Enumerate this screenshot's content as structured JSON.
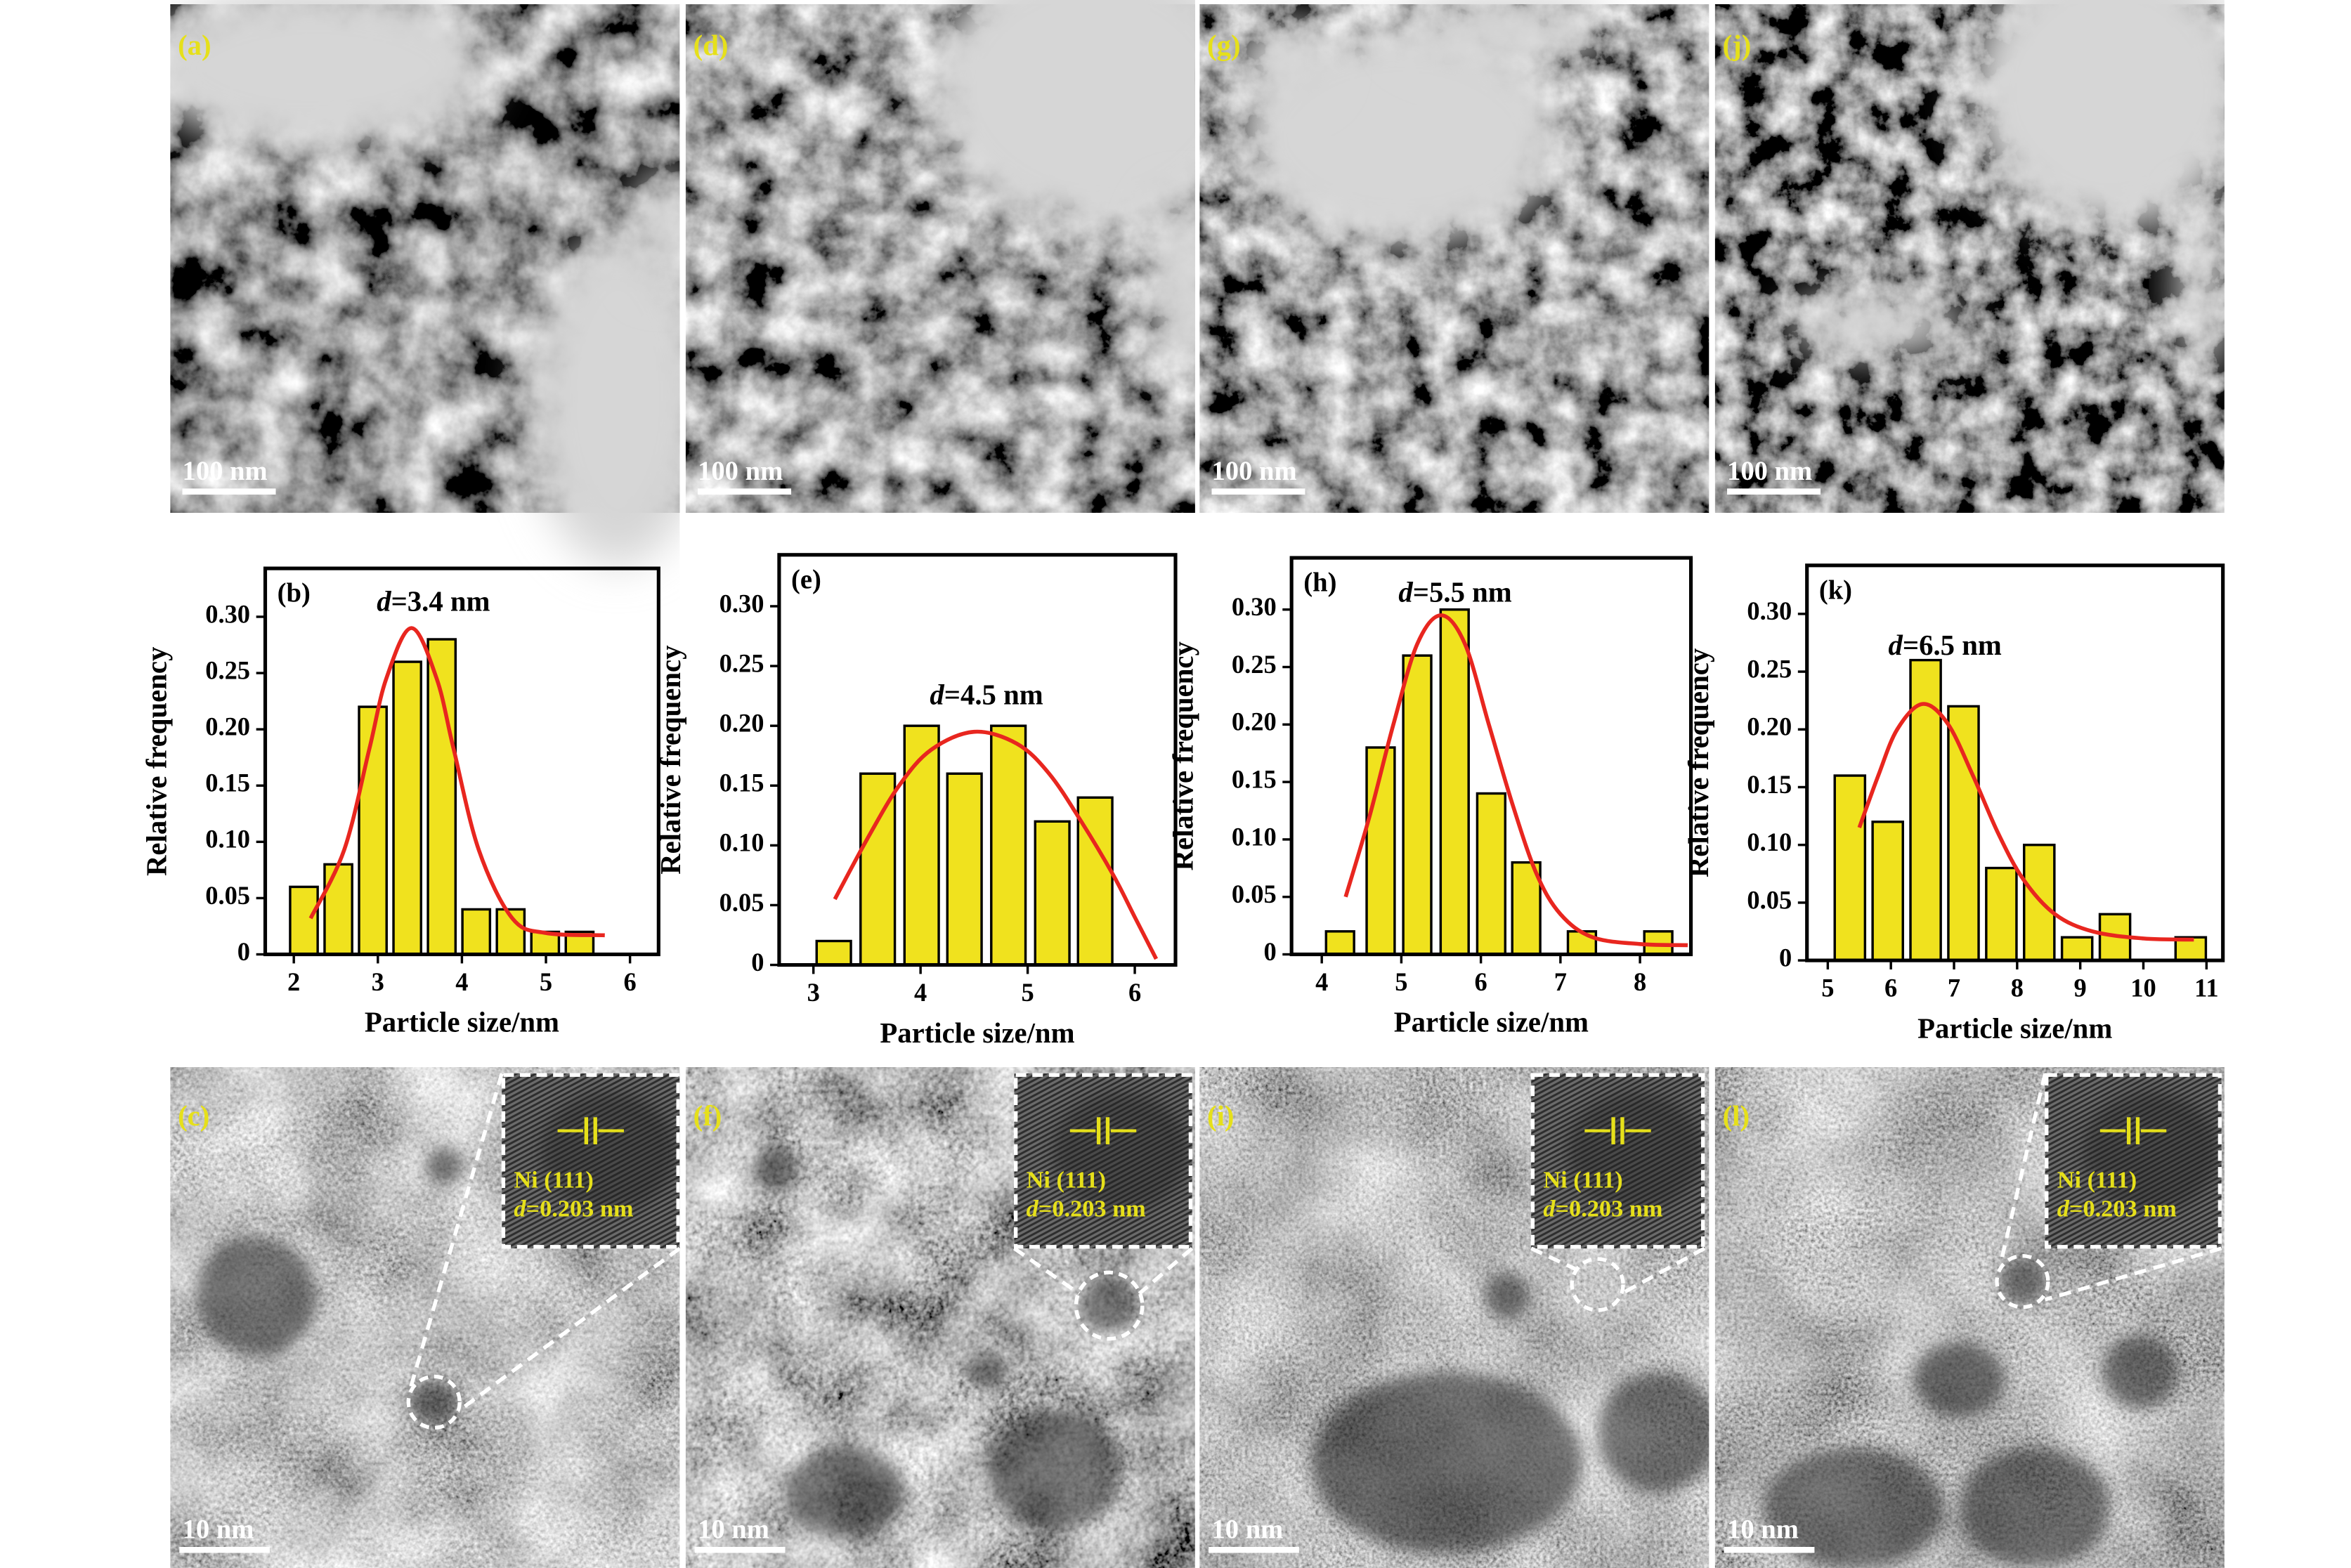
{
  "images_top": [
    {
      "panel": "(a)",
      "scale_bar": "100 nm"
    },
    {
      "panel": "(d)",
      "scale_bar": "100 nm"
    },
    {
      "panel": "(g)",
      "scale_bar": "100 nm"
    },
    {
      "panel": "(j)",
      "scale_bar": "100 nm"
    }
  ],
  "chart_data": [
    {
      "type": "bar",
      "panel": "(b)",
      "annotation": [
        "d",
        "=3.4 nm"
      ],
      "x_label": "Particle size/nm",
      "y_label": "Relative frequency",
      "x": [
        2.12,
        2.53,
        2.94,
        3.35,
        3.76,
        4.17,
        4.58,
        4.99,
        5.4
      ],
      "values": [
        0.06,
        0.08,
        0.22,
        0.26,
        0.28,
        0.04,
        0.04,
        0.02,
        0.02
      ],
      "color": "#f0e21e",
      "fit": {
        "type": "line",
        "color": "#e8261f",
        "x": [
          2.2,
          2.6,
          2.9,
          3.1,
          3.4,
          3.7,
          3.9,
          4.2,
          4.6,
          5.0,
          5.7
        ],
        "values": [
          0.032,
          0.093,
          0.183,
          0.245,
          0.29,
          0.245,
          0.183,
          0.093,
          0.032,
          0.019,
          0.017
        ]
      },
      "xlim": [
        1.66,
        6.34
      ],
      "ylim": [
        0,
        0.343
      ],
      "xticks": [
        2,
        3,
        4,
        5,
        6
      ],
      "yticks": [
        0,
        0.05,
        {
          "value": 0.1,
          "label": "0.10"
        },
        0.15,
        {
          "value": 0.2,
          "label": "0.20"
        },
        0.25,
        {
          "value": 0.3,
          "label": "0.30"
        }
      ]
    },
    {
      "type": "bar",
      "panel": "(e)",
      "annotation": [
        "d",
        "=4.5 nm"
      ],
      "x_label": "Particle size/nm",
      "y_label": "Relative frequency",
      "x": [
        3.19,
        3.6,
        4.01,
        4.41,
        4.82,
        5.23,
        5.63
      ],
      "values": [
        0.02,
        0.16,
        0.2,
        0.16,
        0.2,
        0.12,
        0.14
      ],
      "color": "#f0e21e",
      "fit": {
        "type": "line",
        "color": "#e8261f",
        "x": [
          3.2,
          3.5,
          3.8,
          4.1,
          4.5,
          4.9,
          5.2,
          5.5,
          5.8,
          6.0,
          6.2
        ],
        "values": [
          0.055,
          0.105,
          0.15,
          0.18,
          0.195,
          0.185,
          0.16,
          0.12,
          0.075,
          0.04,
          0.005
        ]
      },
      "xlim": [
        2.68,
        6.38
      ],
      "ylim": [
        0,
        0.343
      ],
      "xticks": [
        3,
        4,
        5,
        6
      ],
      "yticks": [
        0,
        0.05,
        {
          "value": 0.1,
          "label": "0.10"
        },
        0.15,
        {
          "value": 0.2,
          "label": "0.20"
        },
        0.25,
        {
          "value": 0.3,
          "label": "0.30"
        }
      ]
    },
    {
      "type": "bar",
      "panel": "(h)",
      "annotation": [
        "d",
        "=5.5 nm"
      ],
      "x_label": "Particle size/nm",
      "y_label": "Relative frequency",
      "x": [
        4.23,
        4.74,
        5.2,
        5.67,
        6.13,
        6.57,
        7.27,
        8.23
      ],
      "values": [
        0.02,
        0.18,
        0.26,
        0.3,
        0.14,
        0.08,
        0.02,
        0.02
      ],
      "color": "#f0e21e",
      "fit": {
        "type": "line",
        "color": "#e8261f",
        "x": [
          4.3,
          4.6,
          4.9,
          5.2,
          5.5,
          5.8,
          6.1,
          6.4,
          6.7,
          7.0,
          7.4,
          8.0,
          8.6
        ],
        "values": [
          0.05,
          0.12,
          0.2,
          0.27,
          0.295,
          0.27,
          0.2,
          0.13,
          0.07,
          0.035,
          0.015,
          0.009,
          0.008
        ]
      },
      "xlim": [
        3.62,
        8.64
      ],
      "ylim": [
        0,
        0.345
      ],
      "xticks": [
        4,
        5,
        6,
        7,
        8
      ],
      "yticks": [
        0,
        0.05,
        {
          "value": 0.1,
          "label": "0.10"
        },
        0.15,
        {
          "value": 0.2,
          "label": "0.20"
        },
        0.25,
        {
          "value": 0.3,
          "label": "0.30"
        }
      ]
    },
    {
      "type": "bar",
      "panel": "(k)",
      "annotation": [
        "d",
        "=6.5 nm"
      ],
      "x_label": "Particle size/nm",
      "y_label": "Relative frequency",
      "x": [
        5.35,
        5.95,
        6.55,
        7.15,
        7.75,
        8.35,
        8.95,
        9.55,
        10.75
      ],
      "values": [
        0.16,
        0.12,
        0.26,
        0.22,
        0.08,
        0.1,
        0.02,
        0.04,
        0.02
      ],
      "color": "#f0e21e",
      "fit": {
        "type": "line",
        "color": "#e8261f",
        "x": [
          5.5,
          5.8,
          6.1,
          6.5,
          6.9,
          7.3,
          7.7,
          8.1,
          8.6,
          9.2,
          10.0,
          10.8
        ],
        "values": [
          0.115,
          0.16,
          0.2,
          0.222,
          0.205,
          0.16,
          0.11,
          0.07,
          0.04,
          0.025,
          0.019,
          0.018
        ]
      },
      "xlim": [
        4.67,
        11.26
      ],
      "ylim": [
        0,
        0.342
      ],
      "xticks": [
        5,
        6,
        7,
        8,
        9,
        10,
        11
      ],
      "yticks": [
        0,
        0.05,
        {
          "value": 0.1,
          "label": "0.10"
        },
        0.15,
        {
          "value": 0.2,
          "label": "0.20"
        },
        0.25,
        {
          "value": 0.3,
          "label": "0.30"
        }
      ]
    }
  ],
  "images_bottom": [
    {
      "panel": "(c)",
      "scale_bar": "10 nm",
      "inset": {
        "plane": "Ni (111)",
        "spacing": [
          "d",
          "=0.203 nm"
        ]
      }
    },
    {
      "panel": "(f)",
      "scale_bar": "10 nm",
      "inset": {
        "plane": "Ni (111)",
        "spacing": [
          "d",
          "=0.203 nm"
        ]
      }
    },
    {
      "panel": "(i)",
      "scale_bar": "10 nm",
      "inset": {
        "plane": "Ni (111)",
        "spacing": [
          "d",
          "=0.203 nm"
        ]
      }
    },
    {
      "panel": "(l)",
      "scale_bar": "10 nm",
      "inset": {
        "plane": "Ni (111)",
        "spacing": [
          "d",
          "=0.203 nm"
        ]
      }
    }
  ]
}
